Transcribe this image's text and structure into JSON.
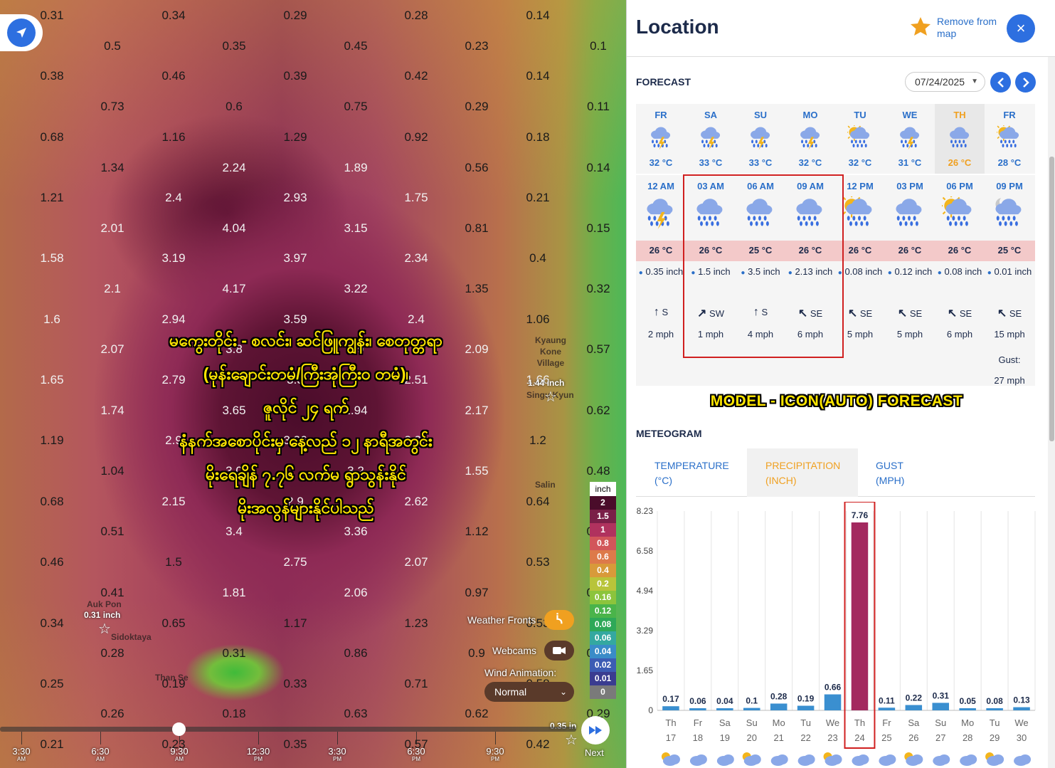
{
  "map": {
    "grid_values": [
      [
        "0.31",
        "0.34",
        "0.29",
        "0.28",
        "0.14"
      ],
      [
        "0.5",
        "0.35",
        "0.45",
        "0.23",
        "0.1"
      ],
      [
        "0.38",
        "0.46",
        "0.39",
        "0.42",
        "0.14"
      ],
      [
        "0.73",
        "0.6",
        "0.75",
        "0.29",
        "0.11"
      ],
      [
        "0.68",
        "1.16",
        "1.29",
        "0.92",
        "0.18"
      ],
      [
        "1.34",
        "2.24",
        "1.89",
        "0.56",
        "0.14"
      ],
      [
        "1.21",
        "2.4",
        "2.93",
        "1.75",
        "0.21"
      ],
      [
        "2.01",
        "4.04",
        "3.15",
        "0.81",
        "0.15"
      ],
      [
        "1.58",
        "3.19",
        "3.97",
        "2.34",
        "0.4"
      ],
      [
        "2.1",
        "4.17",
        "3.22",
        "1.35",
        "0.32"
      ],
      [
        "1.6",
        "2.94",
        "3.59",
        "2.4",
        "1.06"
      ],
      [
        "2.07",
        "3.8",
        "2.9",
        "2.09",
        "0.57"
      ],
      [
        "1.65",
        "2.79",
        "3.3",
        "2.51",
        "1.66"
      ],
      [
        "1.74",
        "3.65",
        "2.94",
        "2.17",
        "0.62"
      ],
      [
        "1.19",
        "2.9",
        "3.36",
        "3.30",
        "1.2"
      ],
      [
        "1.04",
        "3.0",
        "3.2",
        "1.55",
        "0.48"
      ],
      [
        "0.68",
        "2.15",
        "2.9",
        "2.62",
        "0.64"
      ],
      [
        "0.51",
        "3.4",
        "3.36",
        "1.12",
        "0.64"
      ],
      [
        "0.46",
        "1.5",
        "2.75",
        "2.07",
        "0.53"
      ],
      [
        "0.41",
        "1.81",
        "2.06",
        "0.97",
        "0.53"
      ],
      [
        "0.34",
        "0.65",
        "1.17",
        "1.23",
        "0.53"
      ],
      [
        "0.28",
        "0.31",
        "0.86",
        "0.9",
        "0.53"
      ],
      [
        "0.25",
        "0.19",
        "0.33",
        "0.71",
        "0.58"
      ],
      [
        "0.26",
        "0.18",
        "0.63",
        "0.62",
        "0.29"
      ],
      [
        "0.21",
        "0.23",
        "0.35",
        "0.57",
        "0.42"
      ]
    ],
    "places": {
      "kyaung_kone": "Kyaung\nKone\nVillage",
      "singu": "Singu Kyun",
      "salin": "Salin",
      "auk_pon": "Auk Pon",
      "sidoktaya": "Sidoktaya",
      "than_se": "Than Se"
    },
    "place_values": {
      "singu": "1.44 inch",
      "auk_pon": "0.31 inch",
      "bottom_right": "0.35 in"
    },
    "overlay_lines": [
      "မကွေးတိုင်း - စလင်း၊ ဆင်ဖြူကျွန်း၊ စေတုတ္တရာ",
      "(မုန်းချောင်းတမံ/ကြီးအုံကြီး၀ တမံ)၊",
      "ဇူလိုင် ၂၄ ရက်",
      "နံနက်အစောပိုင်းမှ နေ့လည် ၁၂ နာရီအတွင်း",
      "မိုးရေချိန် ၇.၇၆ လက်မ ရွာသွန်းနိုင်",
      "မိုးအလွန်များနိုင်ပါသည်"
    ],
    "legend": {
      "unit": "inch",
      "steps": [
        {
          "label": "2",
          "color": "#4a0c2a"
        },
        {
          "label": "1.5",
          "color": "#7a1f48"
        },
        {
          "label": "1",
          "color": "#b0325e"
        },
        {
          "label": "0.8",
          "color": "#d2565a"
        },
        {
          "label": "0.6",
          "color": "#dd7a4a"
        },
        {
          "label": "0.4",
          "color": "#d89a3a"
        },
        {
          "label": "0.2",
          "color": "#b8c43a"
        },
        {
          "label": "0.16",
          "color": "#8cc43c"
        },
        {
          "label": "0.12",
          "color": "#4ab44a"
        },
        {
          "label": "0.08",
          "color": "#2ea858"
        },
        {
          "label": "0.06",
          "color": "#34a8a0"
        },
        {
          "label": "0.04",
          "color": "#3a8cc8"
        },
        {
          "label": "0.02",
          "color": "#3c5cb4"
        },
        {
          "label": "0.01",
          "color": "#3a3c90"
        },
        {
          "label": "0",
          "color": "#7a7a7a"
        }
      ]
    },
    "weather_fronts_label": "Weather Fronts",
    "webcams_label": "Webcams",
    "wind_animation_label": "Wind Animation:",
    "wind_animation_value": "Normal",
    "timeline": [
      {
        "time": "3:30",
        "ampm": "AM"
      },
      {
        "time": "6:30",
        "ampm": "AM"
      },
      {
        "time": "9:30",
        "ampm": "AM"
      },
      {
        "time": "12:30",
        "ampm": "PM"
      },
      {
        "time": "3:30",
        "ampm": "PM"
      },
      {
        "time": "6:30",
        "ampm": "PM"
      },
      {
        "time": "9:30",
        "ampm": "PM"
      }
    ],
    "timeline_position": 0.3,
    "next_label": "Next"
  },
  "panel": {
    "title": "Location",
    "remove_label": "Remove from map",
    "close_label": "×",
    "forecast_label": "FORECAST",
    "date_value": "07/24/2025",
    "days": [
      {
        "name": "FR",
        "temp": "32 °C",
        "icon": "storm-icon"
      },
      {
        "name": "SA",
        "temp": "33 °C",
        "icon": "storm-icon"
      },
      {
        "name": "SU",
        "temp": "33 °C",
        "icon": "storm-icon"
      },
      {
        "name": "MO",
        "temp": "32 °C",
        "icon": "storm-icon"
      },
      {
        "name": "TU",
        "temp": "32 °C",
        "icon": "sun-rain-icon"
      },
      {
        "name": "WE",
        "temp": "31 °C",
        "icon": "storm-icon"
      },
      {
        "name": "TH",
        "temp": "26 °C",
        "icon": "rain-icon"
      },
      {
        "name": "FR",
        "temp": "28 °C",
        "icon": "sun-rain-icon"
      }
    ],
    "selected_day": 6,
    "hours": [
      {
        "time": "12 AM",
        "temp": "26 °C",
        "precip": "0.35 inch",
        "dir_arrow": "↑",
        "dir": "S",
        "speed": "2 mph",
        "gust_label": "",
        "gust": "",
        "icon": "storm-icon"
      },
      {
        "time": "03 AM",
        "temp": "26 °C",
        "precip": "1.5 inch",
        "dir_arrow": "↗",
        "dir": "SW",
        "speed": "1 mph",
        "gust_label": "",
        "gust": "",
        "icon": "rain-icon"
      },
      {
        "time": "06 AM",
        "temp": "25 °C",
        "precip": "3.5 inch",
        "dir_arrow": "↑",
        "dir": "S",
        "speed": "4 mph",
        "gust_label": "",
        "gust": "",
        "icon": "rain-icon"
      },
      {
        "time": "09 AM",
        "temp": "26 °C",
        "precip": "2.13 inch",
        "dir_arrow": "↖",
        "dir": "SE",
        "speed": "6 mph",
        "gust_label": "",
        "gust": "",
        "icon": "rain-icon"
      },
      {
        "time": "12 PM",
        "temp": "26 °C",
        "precip": "0.08 inch",
        "dir_arrow": "↖",
        "dir": "SE",
        "speed": "5 mph",
        "gust_label": "",
        "gust": "",
        "icon": "sun-rain-icon"
      },
      {
        "time": "03 PM",
        "temp": "26 °C",
        "precip": "0.12 inch",
        "dir_arrow": "↖",
        "dir": "SE",
        "speed": "5 mph",
        "gust_label": "",
        "gust": "",
        "icon": "rain-icon"
      },
      {
        "time": "06 PM",
        "temp": "26 °C",
        "precip": "0.08 inch",
        "dir_arrow": "↖",
        "dir": "SE",
        "speed": "6 mph",
        "gust_label": "",
        "gust": "",
        "icon": "sun-rain-icon"
      },
      {
        "time": "09 PM",
        "temp": "25 °C",
        "precip": "0.01 inch",
        "dir_arrow": "↖",
        "dir": "SE",
        "speed": "15 mph",
        "gust_label": "Gust:",
        "gust": "27 mph",
        "icon": "moon-rain-icon"
      }
    ],
    "model_label": "MODEL - ICON(AUTO) FORECAST",
    "meteogram_label": "METEOGRAM",
    "meteo_tabs": [
      {
        "label": "TEMPERATURE\n(°C)"
      },
      {
        "label": "PRECIPITATION\n(INCH)"
      },
      {
        "label": "GUST\n(MPH)"
      }
    ],
    "active_tab": 1,
    "colors": {
      "accent": "#2d6fe0",
      "link": "#2a6fc9",
      "selected": "#f0a020",
      "highlight": "#d02020",
      "bar": "#3a8fd0",
      "bar_highlight": "#a3295f"
    }
  },
  "chart_data": {
    "type": "bar",
    "ylabel": "",
    "yticks": [
      "8.23",
      "6.58",
      "4.94",
      "3.29",
      "1.65",
      "0"
    ],
    "ylim": [
      0,
      8.23
    ],
    "categories": [
      {
        "day": "Th",
        "date": "17"
      },
      {
        "day": "Fr",
        "date": "18"
      },
      {
        "day": "Sa",
        "date": "19"
      },
      {
        "day": "Su",
        "date": "20"
      },
      {
        "day": "Mo",
        "date": "21"
      },
      {
        "day": "Tu",
        "date": "22"
      },
      {
        "day": "We",
        "date": "23"
      },
      {
        "day": "Th",
        "date": "24"
      },
      {
        "day": "Fr",
        "date": "25"
      },
      {
        "day": "Sa",
        "date": "26"
      },
      {
        "day": "Su",
        "date": "27"
      },
      {
        "day": "Mo",
        "date": "28"
      },
      {
        "day": "Tu",
        "date": "29"
      },
      {
        "day": "We",
        "date": "30"
      }
    ],
    "values": [
      0.17,
      0.06,
      0.04,
      0.1,
      0.28,
      0.19,
      0.66,
      7.76,
      0.11,
      0.22,
      0.31,
      0.05,
      0.08,
      0.13
    ],
    "labels": [
      "0.17",
      "0.06",
      "0.04",
      "0.1",
      "0.28",
      "0.19",
      "0.66",
      "7.76",
      "0.11",
      "0.22",
      "0.31",
      "0.05",
      "0.08",
      "0.13"
    ],
    "highlight_index": 7,
    "grid": true
  }
}
